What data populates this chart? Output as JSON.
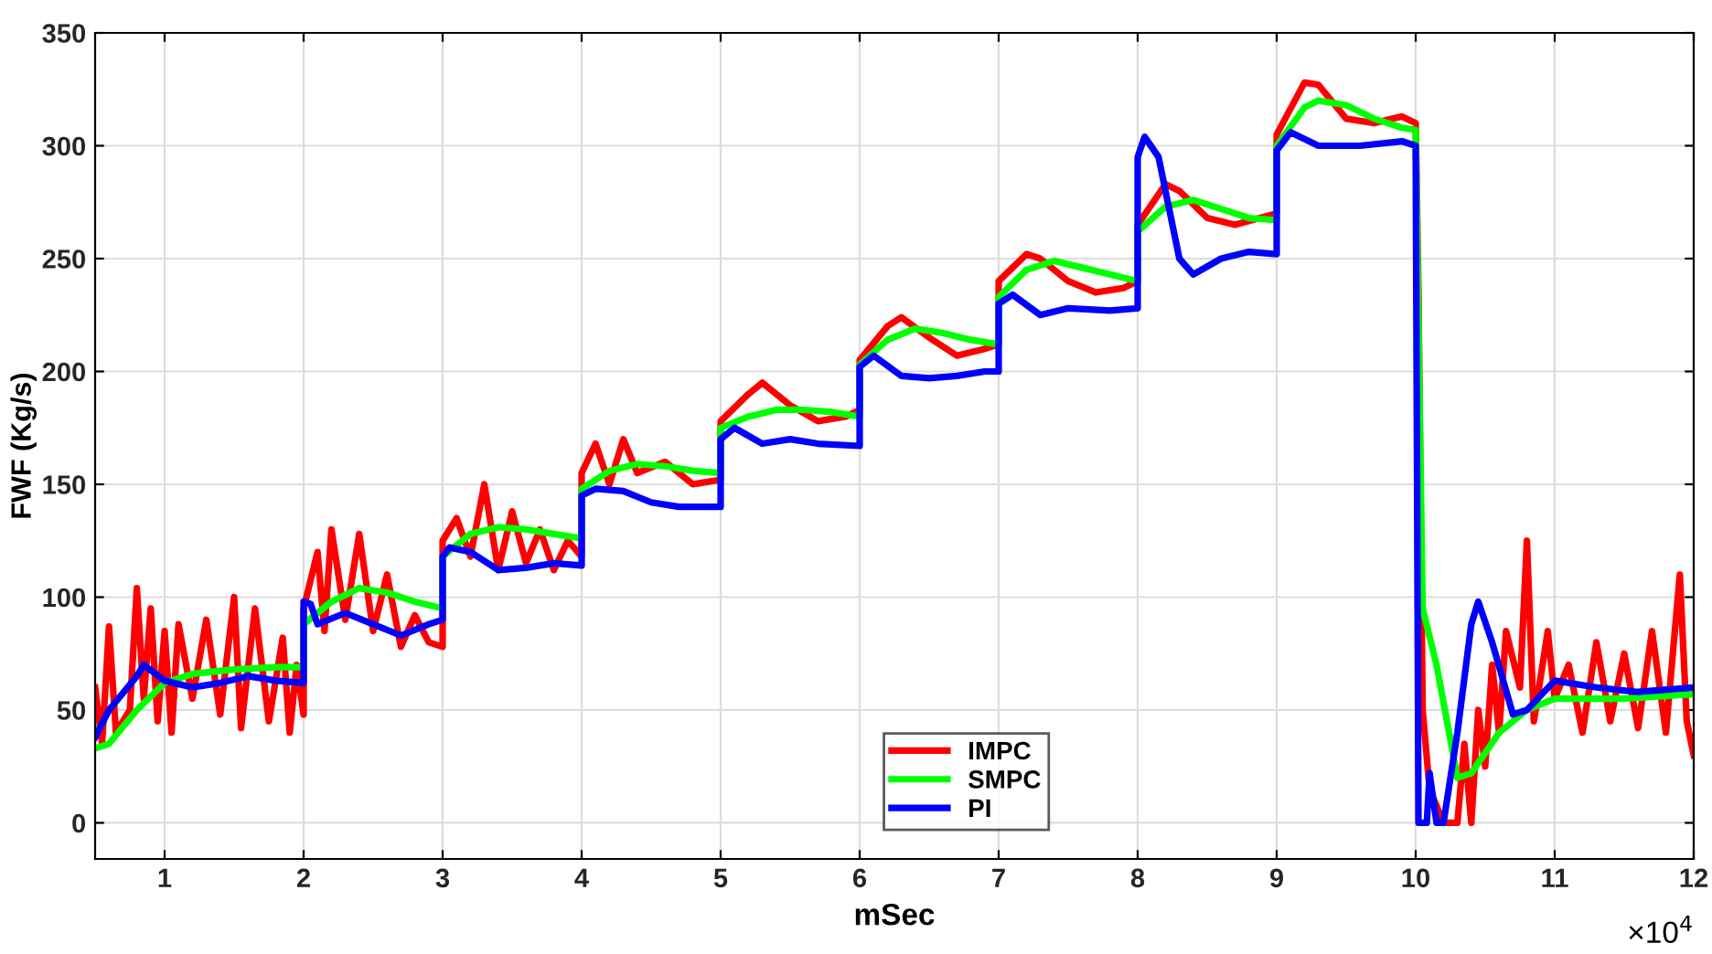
{
  "chart_data": {
    "type": "line",
    "xlabel": "mSec",
    "ylabel": "FWF (Kg/s)",
    "annotations": [
      "×10$^{4}$"
    ],
    "xlim": [
      0.5,
      12
    ],
    "ylim": [
      -16,
      350
    ],
    "xticks": [
      1,
      2,
      3,
      4,
      5,
      6,
      7,
      8,
      9,
      10,
      11,
      12
    ],
    "yticks": [
      0,
      50,
      100,
      150,
      200,
      250,
      300,
      350
    ],
    "grid": true,
    "legend": "bottom",
    "marker": "none",
    "line_style": "solid",
    "series": [
      {
        "name": "IMPC",
        "color": "#ff0000",
        "x": [
          0.5,
          0.55,
          0.6,
          0.65,
          0.75,
          0.8,
          0.85,
          0.9,
          0.95,
          1.0,
          1.05,
          1.1,
          1.2,
          1.3,
          1.4,
          1.5,
          1.55,
          1.65,
          1.75,
          1.85,
          1.9,
          1.95,
          2.0,
          2.0,
          2.1,
          2.15,
          2.2,
          2.3,
          2.4,
          2.5,
          2.6,
          2.7,
          2.8,
          2.9,
          3.0,
          3.0,
          3.1,
          3.2,
          3.3,
          3.4,
          3.5,
          3.6,
          3.7,
          3.8,
          3.9,
          4.0,
          4.0,
          4.1,
          4.2,
          4.3,
          4.4,
          4.6,
          4.8,
          5.0,
          5.0,
          5.2,
          5.3,
          5.5,
          5.7,
          5.9,
          6.0,
          6.0,
          6.2,
          6.3,
          6.5,
          6.7,
          6.9,
          7.0,
          7.0,
          7.2,
          7.3,
          7.5,
          7.7,
          7.9,
          8.0,
          8.0,
          8.2,
          8.3,
          8.5,
          8.7,
          9.0,
          9.0,
          9.2,
          9.3,
          9.5,
          9.7,
          9.9,
          10.0,
          10.02,
          10.05,
          10.1,
          10.2,
          10.3,
          10.35,
          10.4,
          10.45,
          10.5,
          10.55,
          10.6,
          10.65,
          10.75,
          10.8,
          10.85,
          10.95,
          11.0,
          11.1,
          11.2,
          11.3,
          11.4,
          11.5,
          11.6,
          11.7,
          11.8,
          11.9,
          11.95,
          12.0
        ],
        "values": [
          60,
          35,
          87,
          40,
          50,
          104,
          55,
          95,
          45,
          85,
          40,
          88,
          55,
          90,
          48,
          100,
          42,
          95,
          45,
          82,
          40,
          70,
          48,
          95,
          120,
          85,
          130,
          90,
          128,
          85,
          110,
          78,
          92,
          80,
          78,
          125,
          135,
          118,
          150,
          112,
          138,
          115,
          130,
          112,
          125,
          118,
          155,
          168,
          150,
          170,
          155,
          160,
          150,
          152,
          178,
          190,
          195,
          185,
          178,
          180,
          183,
          205,
          220,
          224,
          215,
          207,
          210,
          212,
          240,
          252,
          250,
          240,
          235,
          237,
          240,
          265,
          283,
          280,
          268,
          265,
          270,
          305,
          328,
          327,
          312,
          310,
          313,
          310,
          235,
          50,
          15,
          0,
          0,
          35,
          0,
          50,
          25,
          70,
          40,
          85,
          60,
          125,
          45,
          85,
          55,
          70,
          40,
          80,
          45,
          75,
          42,
          85,
          40,
          110,
          45,
          30
        ]
      },
      {
        "name": "SMPC",
        "color": "#00ff00",
        "x": [
          0.5,
          0.6,
          0.8,
          1.0,
          1.2,
          1.5,
          1.8,
          2.0,
          2.0,
          2.2,
          2.4,
          2.6,
          2.8,
          3.0,
          3.0,
          3.2,
          3.4,
          3.6,
          3.8,
          4.0,
          4.0,
          4.2,
          4.4,
          4.6,
          4.8,
          5.0,
          5.0,
          5.2,
          5.4,
          5.6,
          5.8,
          6.0,
          6.0,
          6.2,
          6.4,
          6.6,
          6.8,
          7.0,
          7.0,
          7.2,
          7.4,
          7.6,
          7.8,
          8.0,
          8.0,
          8.2,
          8.4,
          8.6,
          8.8,
          9.0,
          9.0,
          9.2,
          9.3,
          9.5,
          9.7,
          9.9,
          10.0,
          10.05,
          10.15,
          10.3,
          10.4,
          10.6,
          10.8,
          11.0,
          11.5,
          12.0
        ],
        "values": [
          33,
          35,
          50,
          62,
          66,
          68,
          69,
          69,
          88,
          98,
          104,
          102,
          98,
          95,
          118,
          128,
          131,
          130,
          128,
          126,
          148,
          156,
          159,
          158,
          156,
          155,
          175,
          180,
          183,
          183,
          182,
          180,
          203,
          214,
          219,
          217,
          214,
          212,
          233,
          245,
          249,
          246,
          243,
          240,
          262,
          273,
          276,
          272,
          268,
          267,
          300,
          317,
          320,
          318,
          312,
          308,
          307,
          95,
          70,
          20,
          22,
          40,
          50,
          55,
          55,
          57
        ]
      },
      {
        "name": "PI",
        "color": "#0000ff",
        "x": [
          0.5,
          0.6,
          0.8,
          0.85,
          1.0,
          1.2,
          1.4,
          1.6,
          1.8,
          2.0,
          2.0,
          2.05,
          2.1,
          2.3,
          2.5,
          2.7,
          2.9,
          3.0,
          3.0,
          3.05,
          3.2,
          3.4,
          3.6,
          3.8,
          4.0,
          4.0,
          4.1,
          4.3,
          4.5,
          4.7,
          5.0,
          5.0,
          5.1,
          5.3,
          5.5,
          5.7,
          6.0,
          6.0,
          6.1,
          6.3,
          6.5,
          6.7,
          6.9,
          7.0,
          7.0,
          7.1,
          7.3,
          7.5,
          7.8,
          8.0,
          8.0,
          8.05,
          8.15,
          8.3,
          8.4,
          8.6,
          8.8,
          9.0,
          9.0,
          9.1,
          9.3,
          9.6,
          9.9,
          10.0,
          10.02,
          10.08,
          10.1,
          10.15,
          10.2,
          10.3,
          10.4,
          10.45,
          10.55,
          10.7,
          10.8,
          11.0,
          11.3,
          11.6,
          12.0
        ],
        "values": [
          38,
          50,
          65,
          70,
          63,
          60,
          62,
          65,
          63,
          62,
          98,
          97,
          88,
          93,
          88,
          83,
          88,
          90,
          118,
          122,
          120,
          112,
          113,
          115,
          114,
          145,
          148,
          147,
          142,
          140,
          140,
          170,
          175,
          168,
          170,
          168,
          167,
          202,
          207,
          198,
          197,
          198,
          200,
          200,
          230,
          234,
          225,
          228,
          227,
          228,
          295,
          304,
          295,
          250,
          243,
          250,
          253,
          252,
          298,
          306,
          300,
          300,
          302,
          300,
          0,
          0,
          22,
          0,
          0,
          40,
          88,
          98,
          80,
          48,
          50,
          63,
          60,
          58,
          60
        ]
      }
    ]
  }
}
